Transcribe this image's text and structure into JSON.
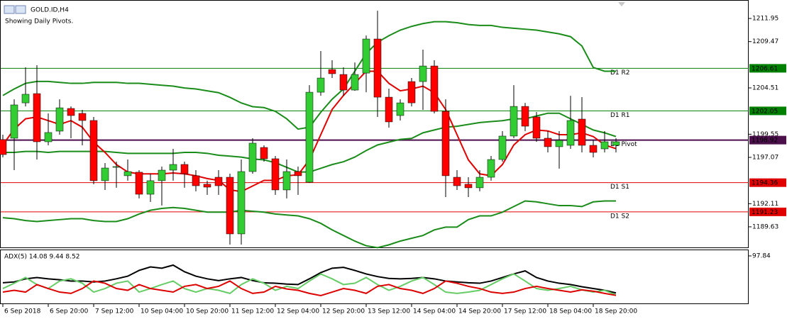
{
  "chart_data": {
    "type": "candlestick",
    "title": "GOLD.ID,H4",
    "subtitle": "Showing Daily Pivots.",
    "up_color": "#32cd32",
    "down_color": "#ff0000",
    "categories": [
      "6 Sep 2018",
      null,
      null,
      null,
      "6 Sep 20:00",
      null,
      null,
      null,
      "7 Sep 12:00",
      null,
      null,
      null,
      "10 Sep 04:00",
      null,
      null,
      null,
      "10 Sep 20:00",
      null,
      null,
      null,
      "11 Sep 12:00",
      null,
      null,
      null,
      "12 Sep 04:00",
      null,
      null,
      null,
      "12 Sep 20:00",
      null,
      null,
      null,
      "13 Sep 12:00",
      null,
      null,
      null,
      "14 Sep 04:00",
      null,
      null,
      null,
      "14 Sep 20:00",
      null,
      null,
      null,
      "17 Sep 12:00",
      null,
      null,
      null,
      "18 Sep 04:00",
      null,
      null,
      null,
      "18 Sep 20:00",
      null,
      null
    ],
    "open": [
      1198.97,
      1199.12,
      1202.91,
      1203.9,
      1198.74,
      1199.88,
      1202.31,
      1201.78,
      1201.02,
      1194.57,
      1196.08,
      1195.1,
      1195.48,
      1193.12,
      1194.57,
      1195.7,
      1196.31,
      1195.1,
      1194.19,
      1194.94,
      1194.94,
      1188.87,
      1195.55,
      1198.13,
      1196.92,
      1193.58,
      1195.55,
      1194.41,
      1204.05,
      1206.48,
      1205.95,
      1204.28,
      1206.1,
      1209.75,
      1203.52,
      1201.55,
      1205.19,
      1205.19,
      1206.86,
      1202.0,
      1194.94,
      1194.19,
      1193.81,
      1194.94,
      1196.84,
      1199.35,
      1202.53,
      1201.4,
      1199.12,
      1198.21,
      1198.36,
      1201.17,
      1198.36,
      1197.98,
      1198.36
    ],
    "high": [
      1199.5,
      1203.29,
      1206.71,
      1206.94,
      1201.78,
      1203.29,
      1202.53,
      1202.16,
      1201.4,
      1196.46,
      1196.61,
      1196.84,
      1195.7,
      1195.32,
      1196.08,
      1197.98,
      1196.61,
      1195.7,
      1194.57,
      1195.7,
      1195.32,
      1196.84,
      1199.12,
      1198.36,
      1197.22,
      1196.84,
      1196.08,
      1204.81,
      1208.46,
      1207.47,
      1206.71,
      1207.24,
      1210.12,
      1212.78,
      1204.43,
      1203.29,
      1205.57,
      1208.61,
      1207.47,
      1203.29,
      1195.7,
      1194.94,
      1195.7,
      1197.22,
      1199.88,
      1204.81,
      1202.91,
      1201.93,
      1199.88,
      1199.88,
      1203.67,
      1203.52,
      1198.89,
      1199.88,
      1199.12
    ],
    "low": [
      1197.07,
      1195.7,
      1202.53,
      1196.84,
      1198.36,
      1199.5,
      1199.12,
      1198.36,
      1194.19,
      1193.58,
      1193.81,
      1194.57,
      1192.67,
      1192.29,
      1191.91,
      1194.57,
      1193.81,
      1193.43,
      1193.05,
      1193.05,
      1187.73,
      1187.73,
      1195.32,
      1196.61,
      1193.05,
      1192.67,
      1193.05,
      1194.34,
      1203.67,
      1205.57,
      1203.67,
      1204.2,
      1204.05,
      1201.4,
      1200.26,
      1201.02,
      1202.53,
      1202.16,
      1201.78,
      1192.82,
      1193.58,
      1192.82,
      1193.43,
      1194.57,
      1196.61,
      1199.12,
      1199.88,
      1198.74,
      1197.6,
      1195.86,
      1197.98,
      1197.6,
      1197.07,
      1197.6,
      1197.6
    ],
    "close": [
      1197.37,
      1202.69,
      1203.83,
      1198.74,
      1199.73,
      1202.38,
      1201.55,
      1201.02,
      1194.57,
      1195.93,
      1196.08,
      1195.55,
      1193.12,
      1194.57,
      1195.7,
      1196.31,
      1195.32,
      1194.03,
      1193.88,
      1194.03,
      1188.87,
      1195.55,
      1198.59,
      1196.92,
      1193.58,
      1195.55,
      1195.1,
      1204.05,
      1205.57,
      1206.03,
      1204.28,
      1205.95,
      1209.75,
      1203.52,
      1200.87,
      1202.91,
      1202.91,
      1206.86,
      1202.0,
      1195.1,
      1194.03,
      1193.81,
      1194.94,
      1196.84,
      1199.35,
      1202.53,
      1200.41,
      1199.12,
      1198.21,
      1198.89,
      1201.02,
      1198.36,
      1197.6,
      1198.74,
      1198.74
    ],
    "series": [
      {
        "color": "#1a8c1a",
        "values": [
          1203.7,
          1204.4,
          1205.0,
          1205.2,
          1205.2,
          1205.1,
          1205.0,
          1205.0,
          1205.1,
          1205.1,
          1205.1,
          1205.0,
          1205.0,
          1204.9,
          1204.8,
          1204.7,
          1204.5,
          1204.4,
          1204.2,
          1204.0,
          1203.5,
          1202.9,
          1202.5,
          1202.4,
          1202.0,
          1201.2,
          1200.1,
          1200.3,
          1201.9,
          1203.3,
          1204.4,
          1206.3,
          1208.2,
          1209.4,
          1210.1,
          1210.7,
          1211.1,
          1211.4,
          1211.6,
          1211.6,
          1211.5,
          1211.3,
          1211.2,
          1211.2,
          1211.0,
          1210.9,
          1210.8,
          1210.7,
          1210.5,
          1210.3,
          1210.0,
          1209.0,
          1206.7,
          1206.3,
          1206.3
        ]
      },
      {
        "color": "#1a8c1a",
        "values": [
          1197.6,
          1197.6,
          1197.7,
          1197.7,
          1197.6,
          1197.7,
          1197.7,
          1197.7,
          1197.7,
          1197.7,
          1197.6,
          1197.5,
          1197.5,
          1197.5,
          1197.5,
          1197.5,
          1197.6,
          1197.6,
          1197.5,
          1197.3,
          1197.2,
          1197.1,
          1196.9,
          1196.8,
          1196.5,
          1196.0,
          1195.5,
          1195.5,
          1195.9,
          1196.3,
          1196.6,
          1197.1,
          1197.8,
          1198.4,
          1198.7,
          1199.0,
          1199.1,
          1199.7,
          1200.0,
          1200.3,
          1200.4,
          1200.6,
          1200.8,
          1200.9,
          1201.0,
          1201.2,
          1201.2,
          1201.5,
          1201.8,
          1201.8,
          1201.2,
          1200.6,
          1200.0,
          1199.7,
          1199.3
        ]
      },
      {
        "color": "#1a8c1a",
        "values": [
          1190.6,
          1190.5,
          1190.3,
          1190.2,
          1190.3,
          1190.4,
          1190.5,
          1190.5,
          1190.3,
          1190.2,
          1190.2,
          1190.5,
          1191.0,
          1191.4,
          1191.6,
          1191.7,
          1191.6,
          1191.4,
          1191.2,
          1191.2,
          1191.2,
          1191.4,
          1191.3,
          1191.2,
          1191.0,
          1190.9,
          1190.8,
          1190.5,
          1190.0,
          1189.3,
          1188.7,
          1188.1,
          1187.6,
          1187.4,
          1187.7,
          1188.1,
          1188.4,
          1188.7,
          1189.3,
          1189.6,
          1189.6,
          1190.4,
          1190.8,
          1190.8,
          1191.2,
          1191.8,
          1192.4,
          1192.3,
          1192.1,
          1191.9,
          1191.9,
          1191.8,
          1192.3,
          1192.4,
          1192.4
        ]
      },
      {
        "color": "#e00000",
        "values": [
          1198.4,
          1200.1,
          1201.2,
          1201.4,
          1201.0,
          1200.6,
          1201.0,
          1200.3,
          1198.7,
          1197.6,
          1196.3,
          1195.5,
          1195.3,
          1195.3,
          1195.3,
          1195.4,
          1195.3,
          1195.1,
          1194.8,
          1194.6,
          1193.6,
          1193.4,
          1194.0,
          1194.6,
          1194.6,
          1195.1,
          1195.2,
          1196.8,
          1199.5,
          1202.2,
          1203.7,
          1205.0,
          1206.3,
          1206.3,
          1205.0,
          1204.2,
          1204.4,
          1204.7,
          1204.0,
          1202.2,
          1199.5,
          1196.8,
          1195.3,
          1195.1,
          1196.3,
          1198.4,
          1199.5,
          1200.0,
          1199.9,
          1199.5,
          1199.5,
          1199.7,
          1199.3,
          1198.4,
          1198.0
        ]
      }
    ],
    "pivots": [
      {
        "name": "D1 R2",
        "value": 1206.61,
        "color": "#008000"
      },
      {
        "name": "D1 R1",
        "value": 1202.05,
        "color": "#008000"
      },
      {
        "name": "D1 Pivot",
        "value": 1198.92,
        "color": "#4b0f4b"
      },
      {
        "name": "D1 S1",
        "value": 1194.36,
        "color": "#e00000"
      },
      {
        "name": "D1 S2",
        "value": 1191.23,
        "color": "#e00000"
      }
    ],
    "ylim": [
      1187.5,
      1213.7
    ],
    "yticks": [
      1211.95,
      1209.47,
      1204.51,
      1199.55,
      1197.07,
      1192.11,
      1189.63
    ],
    "indicator": {
      "label": "ADX(5) 14.08 9.44 8.52",
      "ylim": [
        0,
        97.84
      ],
      "yticks": [
        97.84
      ],
      "series": [
        {
          "color": "#000000",
          "values": [
            37,
            39,
            46,
            49,
            46,
            44,
            41,
            41,
            39,
            41,
            46,
            52,
            65,
            73,
            70,
            77,
            62,
            52,
            46,
            42,
            46,
            49,
            42,
            37,
            36,
            34,
            33,
            46,
            60,
            70,
            72,
            65,
            57,
            51,
            47,
            46,
            47,
            49,
            46,
            41,
            39,
            37,
            36,
            41,
            49,
            57,
            64,
            49,
            41,
            36,
            33,
            28,
            24,
            20,
            14.08
          ]
        },
        {
          "color": "#66cc66",
          "values": [
            24,
            36,
            49,
            33,
            24,
            41,
            46,
            36,
            16,
            24,
            36,
            41,
            16,
            24,
            33,
            41,
            24,
            16,
            24,
            20,
            13,
            33,
            46,
            36,
            20,
            29,
            24,
            41,
            57,
            46,
            33,
            36,
            49,
            33,
            20,
            29,
            41,
            49,
            33,
            16,
            13,
            16,
            20,
            33,
            46,
            57,
            41,
            24,
            20,
            24,
            29,
            21,
            16,
            20,
            9.44
          ]
        },
        {
          "color": "#dd0000",
          "values": [
            16,
            20,
            16,
            33,
            24,
            16,
            13,
            24,
            41,
            36,
            24,
            20,
            33,
            24,
            20,
            16,
            29,
            33,
            24,
            29,
            41,
            24,
            13,
            16,
            29,
            23,
            20,
            13,
            8,
            16,
            24,
            20,
            13,
            29,
            33,
            24,
            20,
            13,
            24,
            41,
            36,
            29,
            24,
            16,
            13,
            16,
            24,
            29,
            24,
            20,
            16,
            21,
            18,
            13,
            8.52
          ]
        }
      ]
    }
  }
}
